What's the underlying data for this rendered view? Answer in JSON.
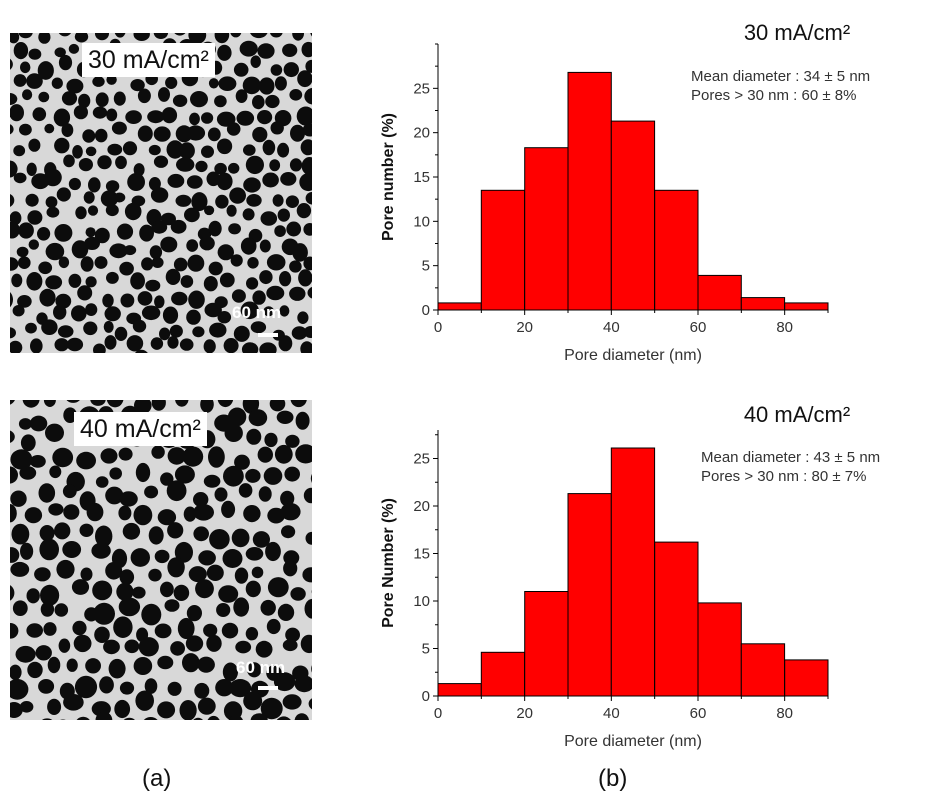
{
  "panels": {
    "a": "(a)",
    "b": "(b)"
  },
  "sem_images": [
    {
      "label": "30 mA/cm²",
      "scale_text": "60 nm"
    },
    {
      "label": "40 mA/cm²",
      "scale_text": "60 nm"
    }
  ],
  "colors": {
    "bar_fill": "#ff0000",
    "bar_stroke": "#000000",
    "sem_background": "#151515"
  },
  "chart_data": [
    {
      "type": "bar",
      "title": "30 mA/cm²",
      "xlabel": "Pore diameter (nm)",
      "ylabel": "Pore number (%)",
      "bin_edges": [
        0,
        10,
        20,
        30,
        40,
        50,
        60,
        70,
        80,
        90
      ],
      "values": [
        0.8,
        13.5,
        18.3,
        26.8,
        21.3,
        13.5,
        3.9,
        1.4,
        0.8
      ],
      "xlim": [
        0,
        90
      ],
      "ylim": [
        0,
        30
      ],
      "xticks": [
        0,
        20,
        40,
        60,
        80
      ],
      "yticks": [
        0,
        5,
        10,
        15,
        20,
        25
      ],
      "annotations": [
        "Mean  diameter : 34 ± 5 nm",
        "Pores > 30 nm : 60 ± 8%"
      ],
      "grid": false
    },
    {
      "type": "bar",
      "title": "40 mA/cm²",
      "xlabel": "Pore diameter (nm)",
      "ylabel": "Pore Number (%)",
      "bin_edges": [
        0,
        10,
        20,
        30,
        40,
        50,
        60,
        70,
        80,
        90
      ],
      "values": [
        1.3,
        4.6,
        11.0,
        21.3,
        26.1,
        16.2,
        9.8,
        5.5,
        3.8
      ],
      "xlim": [
        0,
        90
      ],
      "ylim": [
        0,
        28
      ],
      "xticks": [
        0,
        20,
        40,
        60,
        80
      ],
      "yticks": [
        0,
        5,
        10,
        15,
        20,
        25
      ],
      "annotations": [
        "Mean  diameter : 43 ± 5 nm",
        "Pores > 30 nm : 80 ± 7%"
      ],
      "grid": false
    }
  ]
}
